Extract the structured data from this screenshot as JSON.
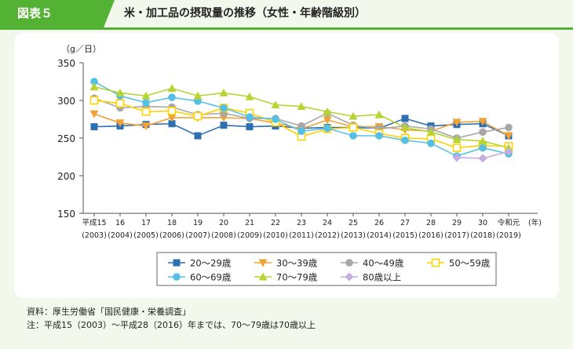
{
  "figure": {
    "badge": "図表５",
    "title": "米・加工品の摂取量の推移（女性・年齢階級別）"
  },
  "chart_data": {
    "type": "line",
    "ylabel": "（g／日）",
    "xunit": "(年)",
    "ylim": [
      150,
      350
    ],
    "yticks": [
      150,
      200,
      250,
      300,
      350
    ],
    "categories": [
      {
        "era": "平成15",
        "year": "(2003)"
      },
      {
        "era": "16",
        "year": "(2004)"
      },
      {
        "era": "17",
        "year": "(2005)"
      },
      {
        "era": "18",
        "year": "(2006)"
      },
      {
        "era": "19",
        "year": "(2007)"
      },
      {
        "era": "20",
        "year": "(2008)"
      },
      {
        "era": "21",
        "year": "(2009)"
      },
      {
        "era": "22",
        "year": "(2010)"
      },
      {
        "era": "23",
        "year": "(2011)"
      },
      {
        "era": "24",
        "year": "(2012)"
      },
      {
        "era": "25",
        "year": "(2013)"
      },
      {
        "era": "26",
        "year": "(2014)"
      },
      {
        "era": "27",
        "year": "(2015)"
      },
      {
        "era": "28",
        "year": "(2016)"
      },
      {
        "era": "29",
        "year": "(2017)"
      },
      {
        "era": "30",
        "year": "(2018)"
      },
      {
        "era": "令和元",
        "year": "(2019)"
      }
    ],
    "series": [
      {
        "name": "20～29歳",
        "color": "#2e6fb1",
        "marker": "square",
        "values": [
          265,
          266,
          268,
          269,
          253,
          267,
          265,
          266,
          263,
          264,
          264,
          263,
          276,
          266,
          268,
          269,
          253
        ]
      },
      {
        "name": "30～39歳",
        "color": "#f0a236",
        "marker": "triangle-down",
        "values": [
          282,
          270,
          266,
          277,
          277,
          277,
          276,
          270,
          262,
          274,
          265,
          265,
          261,
          259,
          271,
          272,
          253
        ]
      },
      {
        "name": "40～49歳",
        "color": "#a8a8a8",
        "marker": "circle",
        "values": [
          303,
          290,
          292,
          291,
          281,
          283,
          276,
          276,
          266,
          283,
          267,
          262,
          266,
          262,
          250,
          258,
          264
        ]
      },
      {
        "name": "50～59歳",
        "color": "#ffd200",
        "marker": "square-open",
        "values": [
          300,
          296,
          285,
          286,
          279,
          290,
          283,
          271,
          252,
          262,
          264,
          256,
          250,
          249,
          237,
          240,
          239
        ]
      },
      {
        "name": "60～69歳",
        "color": "#55c0e6",
        "marker": "circle",
        "values": [
          325,
          306,
          297,
          304,
          299,
          290,
          278,
          275,
          259,
          263,
          253,
          253,
          247,
          243,
          226,
          237,
          229
        ]
      },
      {
        "name": "70～79歳",
        "color": "#b8d433",
        "marker": "triangle-up",
        "values": [
          318,
          310,
          306,
          316,
          306,
          310,
          305,
          294,
          292,
          285,
          279,
          281,
          264,
          258,
          248,
          246,
          237
        ]
      },
      {
        "name": "80歳以上",
        "color": "#c4aee0",
        "marker": "diamond",
        "values": [
          null,
          null,
          null,
          null,
          null,
          null,
          null,
          null,
          null,
          null,
          null,
          null,
          null,
          null,
          224,
          223,
          232
        ]
      }
    ]
  },
  "footnotes": {
    "source": "資料：厚生労働省「国民健康・栄養調査」",
    "note": "注：平成15（2003）～平成28（2016）年までは、70～79歳は70歳以上"
  }
}
